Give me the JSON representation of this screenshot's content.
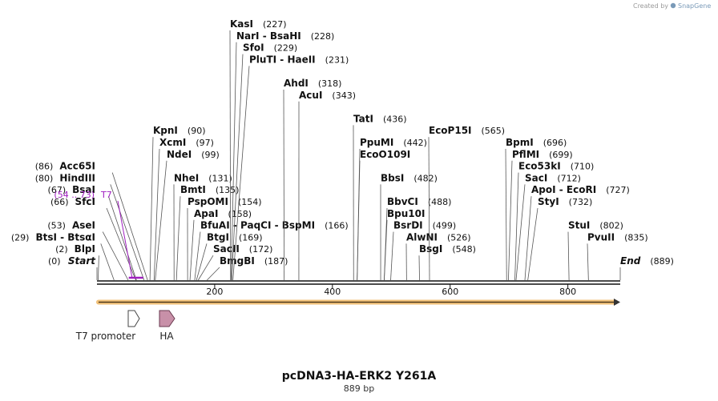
{
  "credit": {
    "text": "Created by",
    "brand": "SnapGene"
  },
  "sequence": {
    "name": "pcDNA3-HA-ERK2 Y261A",
    "length_label": "889 bp"
  },
  "axis": {
    "min": 0,
    "max": 889,
    "ticks": [
      200,
      400,
      600,
      800
    ]
  },
  "primer": {
    "label": "T7",
    "range_label": "(54 .. 73)",
    "start": 54,
    "end": 73
  },
  "features": [
    {
      "label": "T7 promoter",
      "type": "outline-arrow"
    },
    {
      "label": "HA",
      "type": "filled-arrow"
    }
  ],
  "sites": [
    {
      "side": "L",
      "row": 0,
      "cut": 0,
      "pos_label": "(0)",
      "enzymes": [
        "Start"
      ],
      "italic": true
    },
    {
      "side": "L",
      "row": 1,
      "cut": 2,
      "pos_label": "(2)",
      "enzymes": [
        "BlpI"
      ]
    },
    {
      "side": "L",
      "row": 2,
      "cut": 29,
      "pos_label": "(29)",
      "enzymes": [
        "BtsI",
        "BtsαI"
      ]
    },
    {
      "side": "L",
      "row": 3,
      "cut": 53,
      "pos_label": "(53)",
      "enzymes": [
        "AseI"
      ]
    },
    {
      "side": "L",
      "row": 5,
      "cut": 66,
      "pos_label": "(66)",
      "enzymes": [
        "SfcI"
      ]
    },
    {
      "side": "L",
      "row": 6,
      "cut": 67,
      "pos_label": "(67)",
      "enzymes": [
        "BsaI"
      ]
    },
    {
      "side": "L",
      "row": 7,
      "cut": 80,
      "pos_label": "(80)",
      "enzymes": [
        "HindIII"
      ]
    },
    {
      "side": "L",
      "row": 8,
      "cut": 86,
      "pos_label": "(86)",
      "enzymes": [
        "Acc65I"
      ]
    },
    {
      "side": "R",
      "row": 0,
      "cut": 187,
      "pos_label": "(187)",
      "enzymes": [
        "BmgBI"
      ]
    },
    {
      "side": "R",
      "row": 1,
      "cut": 172,
      "pos_label": "(172)",
      "enzymes": [
        "SacII"
      ]
    },
    {
      "side": "R",
      "row": 2,
      "cut": 169,
      "pos_label": "(169)",
      "enzymes": [
        "BtgI"
      ]
    },
    {
      "side": "R",
      "row": 3,
      "cut": 166,
      "pos_label": "(166)",
      "enzymes": [
        "BfuAI",
        "PaqCI",
        "BspMI"
      ]
    },
    {
      "side": "R",
      "row": 4,
      "cut": 158,
      "pos_label": "(158)",
      "enzymes": [
        "ApaI"
      ]
    },
    {
      "side": "R",
      "row": 5,
      "cut": 154,
      "pos_label": "(154)",
      "enzymes": [
        "PspOMI"
      ]
    },
    {
      "side": "R",
      "row": 6,
      "cut": 135,
      "pos_label": "(135)",
      "enzymes": [
        "BmtI"
      ]
    },
    {
      "side": "R",
      "row": 7,
      "cut": 131,
      "pos_label": "(131)",
      "enzymes": [
        "NheI"
      ]
    },
    {
      "side": "R",
      "row": 9,
      "cut": 99,
      "pos_label": "(99)",
      "enzymes": [
        "NdeI"
      ]
    },
    {
      "side": "R",
      "row": 10,
      "cut": 97,
      "pos_label": "(97)",
      "enzymes": [
        "XcmI"
      ]
    },
    {
      "side": "R",
      "row": 11,
      "cut": 90,
      "pos_label": "(90)",
      "enzymes": [
        "KpnI"
      ]
    },
    {
      "side": "R",
      "row": 17,
      "cut": 231,
      "pos_label": "(231)",
      "enzymes": [
        "PluTI",
        "HaeII"
      ]
    },
    {
      "side": "R",
      "row": 18,
      "cut": 229,
      "pos_label": "(229)",
      "enzymes": [
        "SfoI"
      ]
    },
    {
      "side": "R",
      "row": 19,
      "cut": 228,
      "pos_label": "(228)",
      "enzymes": [
        "NarI",
        "BsaHI"
      ]
    },
    {
      "side": "R",
      "row": 20,
      "cut": 227,
      "pos_label": "(227)",
      "enzymes": [
        "KasI"
      ]
    },
    {
      "side": "R",
      "row": 15,
      "cut": 318,
      "pos_label": "(318)",
      "enzymes": [
        "AhdI"
      ]
    },
    {
      "side": "R",
      "row": 14,
      "cut": 343,
      "pos_label": "(343)",
      "enzymes": [
        "AcuI"
      ]
    },
    {
      "side": "R",
      "row": 1,
      "cut": 548,
      "pos_label": "(548)",
      "enzymes": [
        "BsgI"
      ]
    },
    {
      "side": "R",
      "row": 2,
      "cut": 526,
      "pos_label": "(526)",
      "enzymes": [
        "AlwNI"
      ]
    },
    {
      "side": "R",
      "row": 3,
      "cut": 499,
      "pos_label": "(499)",
      "enzymes": [
        "BsrDI"
      ]
    },
    {
      "side": "R",
      "row": 4,
      "cut": 488,
      "pos_label": "",
      "enzymes": [
        "Bpu10I"
      ]
    },
    {
      "side": "R",
      "row": 5,
      "cut": 488,
      "pos_label": "(488)",
      "enzymes": [
        "BbvCI"
      ]
    },
    {
      "side": "R",
      "row": 7,
      "cut": 482,
      "pos_label": "(482)",
      "enzymes": [
        "BbsI"
      ]
    },
    {
      "side": "R",
      "row": 9,
      "cut": 442,
      "pos_label": "",
      "enzymes": [
        "EcoO109I"
      ]
    },
    {
      "side": "R",
      "row": 10,
      "cut": 442,
      "pos_label": "(442)",
      "enzymes": [
        "PpuMI"
      ]
    },
    {
      "side": "R",
      "row": 12,
      "cut": 436,
      "pos_label": "(436)",
      "enzymes": [
        "TatI"
      ]
    },
    {
      "side": "R",
      "row": 11,
      "cut": 565,
      "pos_label": "(565)",
      "enzymes": [
        "EcoP15I"
      ]
    },
    {
      "side": "R",
      "row": 0,
      "cut": 889,
      "pos_label": "(889)",
      "enzymes": [
        "End"
      ],
      "italic": true
    },
    {
      "side": "R",
      "row": 2,
      "cut": 835,
      "pos_label": "(835)",
      "enzymes": [
        "PvuII"
      ]
    },
    {
      "side": "R",
      "row": 3,
      "cut": 802,
      "pos_label": "(802)",
      "enzymes": [
        "StuI"
      ]
    },
    {
      "side": "R",
      "row": 5,
      "cut": 732,
      "pos_label": "(732)",
      "enzymes": [
        "StyI"
      ]
    },
    {
      "side": "R",
      "row": 6,
      "cut": 727,
      "pos_label": "(727)",
      "enzymes": [
        "ApoI",
        "EcoRI"
      ]
    },
    {
      "side": "R",
      "row": 7,
      "cut": 712,
      "pos_label": "(712)",
      "enzymes": [
        "SacI"
      ]
    },
    {
      "side": "R",
      "row": 8,
      "cut": 710,
      "pos_label": "(710)",
      "enzymes": [
        "Eco53kI"
      ]
    },
    {
      "side": "R",
      "row": 9,
      "cut": 699,
      "pos_label": "(699)",
      "enzymes": [
        "PflMI"
      ]
    },
    {
      "side": "R",
      "row": 10,
      "cut": 696,
      "pos_label": "(696)",
      "enzymes": [
        "BpmI"
      ]
    }
  ]
}
